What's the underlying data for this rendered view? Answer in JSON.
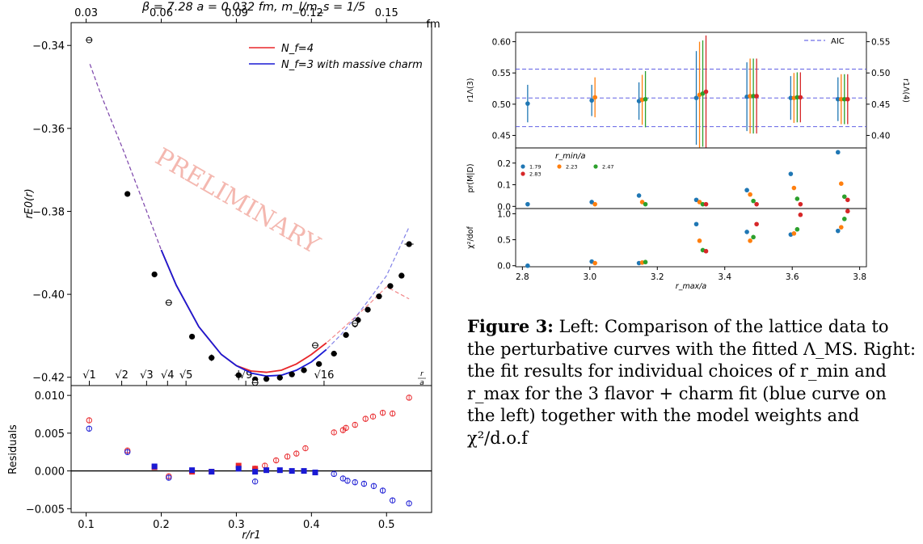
{
  "figure_left": {
    "title": "β = 7.28  a = 0.032 fm,  m_l/m_s = 1/5",
    "watermark": "PRELIMINARY",
    "top_axis_unit": "fm",
    "sqrt_axis_unit": "r/a",
    "legend": [
      {
        "label": "N_f=4",
        "color": "#e8262a"
      },
      {
        "label": "N_f=3 with massive charm",
        "color": "#1a1ad4"
      }
    ]
  },
  "figure_right": {
    "legend_aic": "AIC",
    "legend_title": "r_min/a",
    "legend_items": [
      {
        "label": "1.79",
        "color": "#1f77b4"
      },
      {
        "label": "2.23",
        "color": "#ff7f0e"
      },
      {
        "label": "2.47",
        "color": "#2ca02c"
      },
      {
        "label": "2.83",
        "color": "#d62728"
      }
    ]
  },
  "caption": {
    "label": "Figure 3:",
    "text": "Left: Comparison of the lattice data to the perturbative curves with the fitted Λ_MS. Right: the fit results for individual choices of r_min and r_max for the 3 flavor + charm fit (blue curve on the left) together with the model weights and χ²/d.o.f"
  },
  "chart_data": [
    {
      "type": "scatter",
      "title": "β = 7.28  a = 0.032 fm,  m_l/m_s = 1/5",
      "xlabel": "",
      "ylabel": "rE0(r)",
      "xlim": [
        0.08,
        0.56
      ],
      "ylim": [
        -0.422,
        -0.3345
      ],
      "x_ticks": [
        0.1,
        0.2,
        0.3,
        0.4,
        0.5
      ],
      "y_ticks": [
        -0.34,
        -0.36,
        -0.38,
        -0.4,
        -0.42
      ],
      "y_tick_labels": [
        "−0.34",
        "−0.36",
        "−0.38",
        "−0.40",
        "−0.42"
      ],
      "top_axis": {
        "label": "fm",
        "ticks": [
          0.03,
          0.06,
          0.09,
          0.12,
          0.15
        ],
        "tick_labels": [
          "0.03",
          "0.06",
          "0.09",
          "0.12",
          "0.15"
        ],
        "r1_fm": 0.3
      },
      "sqrt_axis": {
        "label": "r/a",
        "ticks": [
          1,
          2,
          3,
          4,
          5,
          9,
          16
        ],
        "tick_labels": [
          "√1",
          "√2",
          "√3",
          "√4",
          "√5",
          "√9",
          "√16"
        ],
        "a_over_r1": 0.1042
      },
      "filled_points": {
        "x": [
          0.155,
          0.191,
          0.241,
          0.267,
          0.303,
          0.325,
          0.34,
          0.358,
          0.374,
          0.39,
          0.41,
          0.43,
          0.446,
          0.458,
          0.462,
          0.475,
          0.49,
          0.505,
          0.52,
          0.53
        ],
        "y": [
          -0.3758,
          -0.3952,
          -0.4102,
          -0.4153,
          -0.4195,
          -0.4205,
          -0.4204,
          -0.4201,
          -0.4193,
          -0.4183,
          -0.4168,
          -0.4143,
          -0.4098,
          -0.4072,
          -0.4062,
          -0.4037,
          -0.4005,
          -0.398,
          -0.3955,
          -0.3879
        ],
        "xerr": [
          0.0,
          0.003,
          0.003,
          0.004,
          0.005,
          0.004,
          0.004,
          0.004,
          0.004,
          0.004,
          0.004,
          0.004,
          0.004,
          0.004,
          0.004,
          0.004,
          0.004,
          0.004,
          0.004,
          0.006
        ],
        "yerr": [
          0.0,
          0.0004,
          0.0006,
          0.0008,
          0.0012,
          0.0003,
          0.0003,
          0.0003,
          0.0003,
          0.0003,
          0.0003,
          0.0003,
          0.0003,
          0.0008,
          0.0008,
          0.0003,
          0.0003,
          0.0003,
          0.0003,
          0.0003
        ]
      },
      "open_points": {
        "x": [
          0.104,
          0.21,
          0.325,
          0.405,
          0.458
        ],
        "y": [
          -0.3387,
          -0.402,
          -0.4213,
          -0.4123,
          -0.407
        ]
      },
      "series": [
        {
          "name": "N_f=4",
          "color": "#e8262a",
          "x": [
            0.105,
            0.12,
            0.15,
            0.18,
            0.2,
            0.22,
            0.25,
            0.28,
            0.3,
            0.32,
            0.34,
            0.36,
            0.38,
            0.4,
            0.42,
            0.44,
            0.46,
            0.48,
            0.5,
            0.53
          ],
          "y": [
            -0.3445,
            -0.352,
            -0.3655,
            -0.3797,
            -0.3893,
            -0.3978,
            -0.4078,
            -0.4145,
            -0.4172,
            -0.4185,
            -0.4188,
            -0.4183,
            -0.4168,
            -0.4145,
            -0.4117,
            -0.4085,
            -0.4052,
            -0.4018,
            -0.3982,
            -0.4011
          ]
        },
        {
          "name": "N_f=3 with massive charm",
          "color": "#1a1ad4",
          "x": [
            0.105,
            0.12,
            0.15,
            0.18,
            0.2,
            0.22,
            0.25,
            0.28,
            0.3,
            0.32,
            0.34,
            0.36,
            0.38,
            0.4,
            0.42,
            0.44,
            0.46,
            0.48,
            0.5,
            0.53
          ],
          "y": [
            -0.3445,
            -0.352,
            -0.3655,
            -0.3797,
            -0.3893,
            -0.3978,
            -0.4078,
            -0.4145,
            -0.4172,
            -0.419,
            -0.4197,
            -0.4195,
            -0.4183,
            -0.4163,
            -0.4133,
            -0.4096,
            -0.4052,
            -0.4005,
            -0.3955,
            -0.3838
          ]
        }
      ]
    },
    {
      "type": "scatter",
      "title": "",
      "xlabel": "r/r1",
      "ylabel": "Residuals",
      "xlim": [
        0.08,
        0.56
      ],
      "ylim": [
        -0.0055,
        0.0113
      ],
      "x_ticks": [
        0.1,
        0.2,
        0.3,
        0.4,
        0.5
      ],
      "x_tick_labels": [
        "0.1",
        "0.2",
        "0.3",
        "0.4",
        "0.5"
      ],
      "y_ticks": [
        -0.005,
        0.0,
        0.005,
        0.01
      ],
      "y_tick_labels": [
        "−0.005",
        "0.000",
        "0.005",
        "0.010"
      ],
      "series": [
        {
          "name": "",
          "color": "#e8262a",
          "marker": "circle-open",
          "x": [
            0.104,
            0.155,
            0.21,
            0.325,
            0.338,
            0.353,
            0.368,
            0.38,
            0.392,
            0.43,
            0.442,
            0.446,
            0.458,
            0.472,
            0.482,
            0.495,
            0.508,
            0.53
          ],
          "y": [
            0.0067,
            0.0027,
            -0.0007,
            0.0003,
            0.0007,
            0.0014,
            0.0019,
            0.0023,
            0.003,
            0.0051,
            0.0054,
            0.0057,
            0.0061,
            0.0069,
            0.0072,
            0.0077,
            0.0076,
            0.0097
          ]
        },
        {
          "name": "",
          "color": "#e8262a",
          "marker": "square-filled",
          "x": [
            0.191,
            0.241,
            0.267,
            0.303,
            0.325
          ],
          "y": [
            0.0005,
            -0.0001,
            -0.0001,
            0.0007,
            0.0003
          ]
        },
        {
          "name": "",
          "color": "#1a1ad4",
          "marker": "circle-open",
          "x": [
            0.104,
            0.155,
            0.21,
            0.325,
            0.43,
            0.442,
            0.448,
            0.458,
            0.47,
            0.483,
            0.495,
            0.508,
            0.53
          ],
          "y": [
            0.0056,
            0.0025,
            -0.0009,
            -0.0014,
            -0.0004,
            -0.001,
            -0.0013,
            -0.0015,
            -0.0017,
            -0.002,
            -0.0026,
            -0.0039,
            -0.0043
          ]
        },
        {
          "name": "",
          "color": "#1a1ad4",
          "marker": "square-filled",
          "x": [
            0.191,
            0.241,
            0.267,
            0.303,
            0.325,
            0.34,
            0.358,
            0.374,
            0.39,
            0.405
          ],
          "y": [
            0.0006,
            0.0001,
            -0.0001,
            0.0003,
            -0.0001,
            0.0001,
            0.0001,
            0.0,
            0.0,
            -0.0002
          ]
        }
      ]
    },
    {
      "type": "scatter",
      "title": "",
      "xlabel": "",
      "ylabel": "r1Λ(3)",
      "y2label": "r1Λ(4)",
      "xlim": [
        2.78,
        3.82
      ],
      "ylim": [
        0.43,
        0.615
      ],
      "y_ticks": [
        0.45,
        0.5,
        0.55,
        0.6
      ],
      "y_tick_labels": [
        "0.45",
        "0.50",
        "0.55",
        "0.60"
      ],
      "y2_ticks": [
        0.4,
        0.45,
        0.5,
        0.55
      ],
      "y2_tick_labels": [
        "0.40",
        "0.45",
        "0.50",
        "0.55"
      ],
      "y2_offset": -0.05,
      "aic_lines": [
        0.464,
        0.51,
        0.556
      ],
      "groups_x": [
        2.83,
        3.02,
        3.16,
        3.33,
        3.48,
        3.61,
        3.75
      ],
      "series": [
        {
          "name": "1.79",
          "color": "#1f77b4",
          "y": [
            0.501,
            0.506,
            0.505,
            0.51,
            0.512,
            0.51,
            0.508
          ],
          "yerr": [
            0.03,
            0.025,
            0.03,
            0.075,
            0.055,
            0.035,
            0.035
          ]
        },
        {
          "name": "2.23",
          "color": "#ff7f0e",
          "y": [
            null,
            0.511,
            0.507,
            0.515,
            0.513,
            0.51,
            0.508
          ],
          "yerr": [
            0,
            0.032,
            0.04,
            0.085,
            0.06,
            0.04,
            0.04
          ]
        },
        {
          "name": "2.47",
          "color": "#2ca02c",
          "y": [
            null,
            null,
            0.508,
            0.517,
            0.513,
            0.511,
            0.508
          ],
          "yerr": [
            0,
            0,
            0.045,
            0.085,
            0.06,
            0.04,
            0.04
          ]
        },
        {
          "name": "2.83",
          "color": "#d62728",
          "y": [
            null,
            null,
            null,
            0.52,
            0.513,
            0.511,
            0.508
          ],
          "yerr": [
            0,
            0,
            0,
            0.09,
            0.06,
            0.04,
            0.04
          ]
        }
      ]
    },
    {
      "type": "scatter",
      "title": "",
      "xlabel": "",
      "ylabel": "pr(M|D)",
      "xlim": [
        2.78,
        3.82
      ],
      "ylim": [
        -0.01,
        0.27
      ],
      "y_ticks": [
        0.0,
        0.1,
        0.2
      ],
      "y_tick_labels": [
        "0.0",
        "0.1",
        "0.2"
      ],
      "groups_x": [
        2.83,
        3.02,
        3.16,
        3.33,
        3.48,
        3.61,
        3.75
      ],
      "series": [
        {
          "name": "1.79",
          "color": "#1f77b4",
          "y": [
            0.01,
            0.02,
            0.05,
            0.03,
            0.075,
            0.15,
            0.25
          ]
        },
        {
          "name": "2.23",
          "color": "#ff7f0e",
          "y": [
            null,
            0.01,
            0.02,
            0.02,
            0.055,
            0.085,
            0.105
          ]
        },
        {
          "name": "2.47",
          "color": "#2ca02c",
          "y": [
            null,
            null,
            0.01,
            0.01,
            0.025,
            0.035,
            0.045
          ]
        },
        {
          "name": "2.83",
          "color": "#d62728",
          "y": [
            null,
            null,
            null,
            0.01,
            0.01,
            0.01,
            0.03
          ]
        }
      ]
    },
    {
      "type": "scatter",
      "title": "",
      "xlabel": "r_max/a",
      "ylabel": "χ²/dof",
      "xlim": [
        2.78,
        3.82
      ],
      "ylim": [
        -0.02,
        1.1
      ],
      "x_ticks": [
        2.8,
        3.0,
        3.2,
        3.4,
        3.6,
        3.8
      ],
      "x_tick_labels": [
        "2.8",
        "3.0",
        "3.2",
        "3.4",
        "3.6",
        "3.8"
      ],
      "y_ticks": [
        0.0,
        0.5,
        1.0
      ],
      "y_tick_labels": [
        "0.0",
        "0.5",
        "1.0"
      ],
      "groups_x": [
        2.83,
        3.02,
        3.16,
        3.33,
        3.48,
        3.61,
        3.75
      ],
      "series": [
        {
          "name": "1.79",
          "color": "#1f77b4",
          "y": [
            0.0,
            0.08,
            0.05,
            0.8,
            0.65,
            0.6,
            0.67
          ]
        },
        {
          "name": "2.23",
          "color": "#ff7f0e",
          "y": [
            null,
            0.05,
            0.06,
            0.48,
            0.48,
            0.62,
            0.74
          ]
        },
        {
          "name": "2.47",
          "color": "#2ca02c",
          "y": [
            null,
            null,
            0.07,
            0.3,
            0.55,
            0.7,
            0.9
          ]
        },
        {
          "name": "2.83",
          "color": "#d62728",
          "y": [
            null,
            null,
            null,
            0.28,
            0.8,
            0.98,
            1.05
          ]
        }
      ]
    }
  ]
}
